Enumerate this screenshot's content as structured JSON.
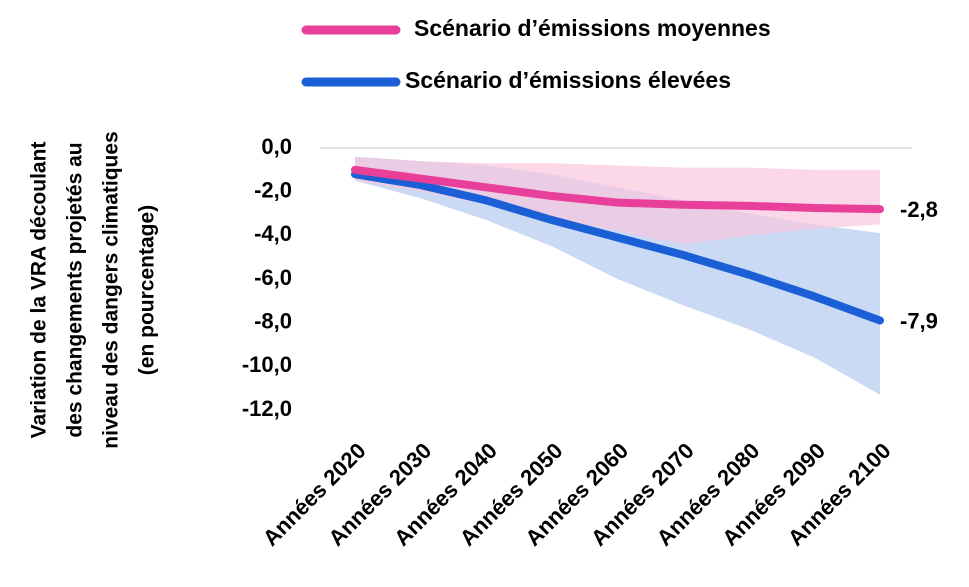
{
  "chart_data": {
    "type": "line",
    "y_label": [
      "Variation de la VRA découlant",
      "des changements projetés au",
      "niveau des dangers climatiques",
      "(en pourcentage)"
    ],
    "categories": [
      "Années 2020",
      "Années 2030",
      "Années 2040",
      "Années 2050",
      "Années 2060",
      "Années 2070",
      "Années 2080",
      "Années 2090",
      "Années 2100"
    ],
    "series": [
      {
        "name": "Scénario d’émissions moyennes",
        "color": "#e8409a",
        "band_color": "#f9c6de",
        "values": [
          -1.0,
          -1.4,
          -1.8,
          -2.2,
          -2.5,
          -2.6,
          -2.65,
          -2.75,
          -2.8
        ],
        "band_upper": [
          -0.4,
          -0.6,
          -0.7,
          -0.7,
          -0.8,
          -0.9,
          -0.9,
          -1.0,
          -1.0
        ],
        "band_lower": [
          -1.5,
          -2.0,
          -2.6,
          -3.2,
          -3.8,
          -4.4,
          -4.0,
          -3.7,
          -3.5
        ],
        "value_labels": [
          null,
          null,
          null,
          null,
          null,
          null,
          null,
          null,
          "-2,8"
        ]
      },
      {
        "name": "Scénario d’émissions élevées",
        "color": "#1a5fd6",
        "band_color": "#c4d6f4",
        "values": [
          -1.2,
          -1.7,
          -2.4,
          -3.3,
          -4.1,
          -4.9,
          -5.8,
          -6.8,
          -7.9
        ],
        "band_upper": [
          -0.4,
          -0.6,
          -0.8,
          -1.2,
          -1.8,
          -2.4,
          -3.0,
          -3.5,
          -3.9
        ],
        "band_lower": [
          -1.5,
          -2.3,
          -3.3,
          -4.5,
          -6.0,
          -7.2,
          -8.3,
          -9.6,
          -11.3
        ],
        "value_labels": [
          null,
          null,
          null,
          null,
          null,
          null,
          null,
          null,
          "-7,9"
        ]
      }
    ],
    "ylim": [
      -12,
      0
    ],
    "yticks": [
      {
        "value": 0,
        "label": "0,0"
      },
      {
        "value": -2,
        "label": "-2,0"
      },
      {
        "value": -4,
        "label": "-4,0"
      },
      {
        "value": -6,
        "label": "-6,0"
      },
      {
        "value": -8,
        "label": "-8,0"
      },
      {
        "value": -10,
        "label": "-10,0"
      },
      {
        "value": -12,
        "label": "-12,0"
      }
    ],
    "grid": true
  }
}
